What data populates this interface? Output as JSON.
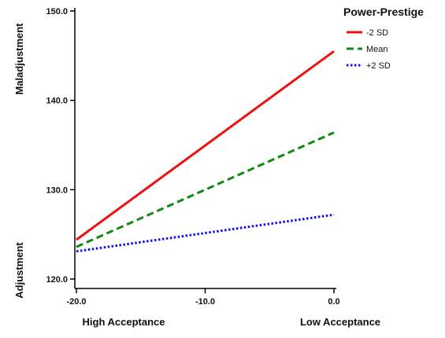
{
  "chart_data": {
    "type": "line",
    "xlim": [
      -20,
      0
    ],
    "ylim": [
      120,
      150
    ],
    "x": [
      -20.0,
      0.0
    ],
    "x_ticks": [
      -20,
      -10,
      0
    ],
    "y_ticks": [
      120,
      130,
      140,
      150
    ],
    "x_tick_labels": [
      "-20.0",
      "-10.0",
      "0.0"
    ],
    "y_tick_labels": [
      "120.0",
      "130.0",
      "140.0",
      "150.0"
    ],
    "x_category_labels": {
      "low_end": "High Acceptance",
      "high_end": "Low Acceptance"
    },
    "y_category_labels": {
      "low_end": "Adjustment",
      "high_end": "Maladjustment"
    },
    "grid": false,
    "legend": {
      "title": "Power-Prestige",
      "placement": "top-right"
    },
    "series": [
      {
        "name": "-2 SD",
        "values": [
          124.4,
          145.5
        ],
        "color": "#ee1111",
        "dash": "solid"
      },
      {
        "name": "Mean",
        "values": [
          123.6,
          136.4
        ],
        "color": "#118811",
        "dash": "dashed"
      },
      {
        "name": "+2 SD",
        "values": [
          123.1,
          127.2
        ],
        "color": "#1111ee",
        "dash": "dotted"
      }
    ]
  }
}
